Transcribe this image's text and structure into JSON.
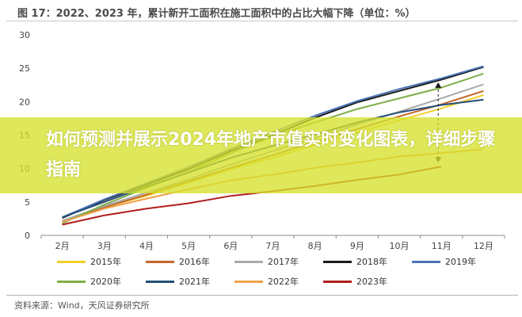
{
  "figure_title": "图 17：2022、2023 年，累计新开工面积在施工面积中的占比大幅下降（单位：%）",
  "source_note": "资料来源：Wind，天风证券研究所",
  "overlay_title": "如何预测并展示2024年地产市值实时变化图表，详细步骤指南",
  "chart_data": {
    "type": "line",
    "title": "图 17：2022、2023 年，累计新开工面积在施工面积中的占比大幅下降（单位：%）",
    "xlabel": "",
    "ylabel": "",
    "categories": [
      "2月",
      "3月",
      "4月",
      "5月",
      "6月",
      "7月",
      "8月",
      "9月",
      "10月",
      "11月",
      "12月"
    ],
    "yticks": [
      0,
      5,
      10,
      15,
      20,
      25,
      30
    ],
    "ylim": [
      0,
      30
    ],
    "grid": false,
    "legend_position": "bottom",
    "series": [
      {
        "name": "2015年",
        "color": "#f2cf2a",
        "values": [
          2.2,
          4.2,
          5.9,
          7.9,
          9.9,
          11.6,
          13.6,
          15.4,
          17.2,
          19.0,
          21.0
        ]
      },
      {
        "name": "2016年",
        "color": "#c4652a",
        "values": [
          2.1,
          4.2,
          6.1,
          8.1,
          10.1,
          12.0,
          14.0,
          15.9,
          17.8,
          19.6,
          21.6
        ]
      },
      {
        "name": "2017年",
        "color": "#a9a9a9",
        "values": [
          2.2,
          4.4,
          6.4,
          8.4,
          10.6,
          12.6,
          14.6,
          16.6,
          18.5,
          20.5,
          22.6
        ]
      },
      {
        "name": "2018年",
        "color": "#1a1a1a",
        "values": [
          2.6,
          5.3,
          7.6,
          9.9,
          12.6,
          15.0,
          17.6,
          19.9,
          21.6,
          23.3,
          25.2
        ]
      },
      {
        "name": "2019年",
        "color": "#4a73b8",
        "values": [
          2.7,
          5.4,
          7.8,
          10.2,
          12.9,
          15.4,
          17.9,
          20.1,
          21.9,
          23.5,
          25.3
        ]
      },
      {
        "name": "2020年",
        "color": "#7fae49",
        "values": [
          1.8,
          4.6,
          7.1,
          9.5,
          12.3,
          14.8,
          16.9,
          18.9,
          20.5,
          22.1,
          24.2
        ]
      },
      {
        "name": "2021年",
        "color": "#244e78",
        "values": [
          2.7,
          5.0,
          7.3,
          9.4,
          11.6,
          13.4,
          15.1,
          16.9,
          18.4,
          19.5,
          20.3
        ]
      },
      {
        "name": "2022年",
        "color": "#f0a04a",
        "values": [
          2.0,
          4.0,
          5.5,
          6.9,
          8.2,
          9.1,
          10.1,
          10.9,
          11.8,
          12.3,
          12.9
        ]
      },
      {
        "name": "2023年",
        "color": "#b01e1e",
        "values": [
          1.6,
          3.0,
          4.0,
          4.8,
          5.9,
          6.6,
          7.4,
          8.3,
          9.1,
          10.3,
          null
        ]
      }
    ]
  }
}
